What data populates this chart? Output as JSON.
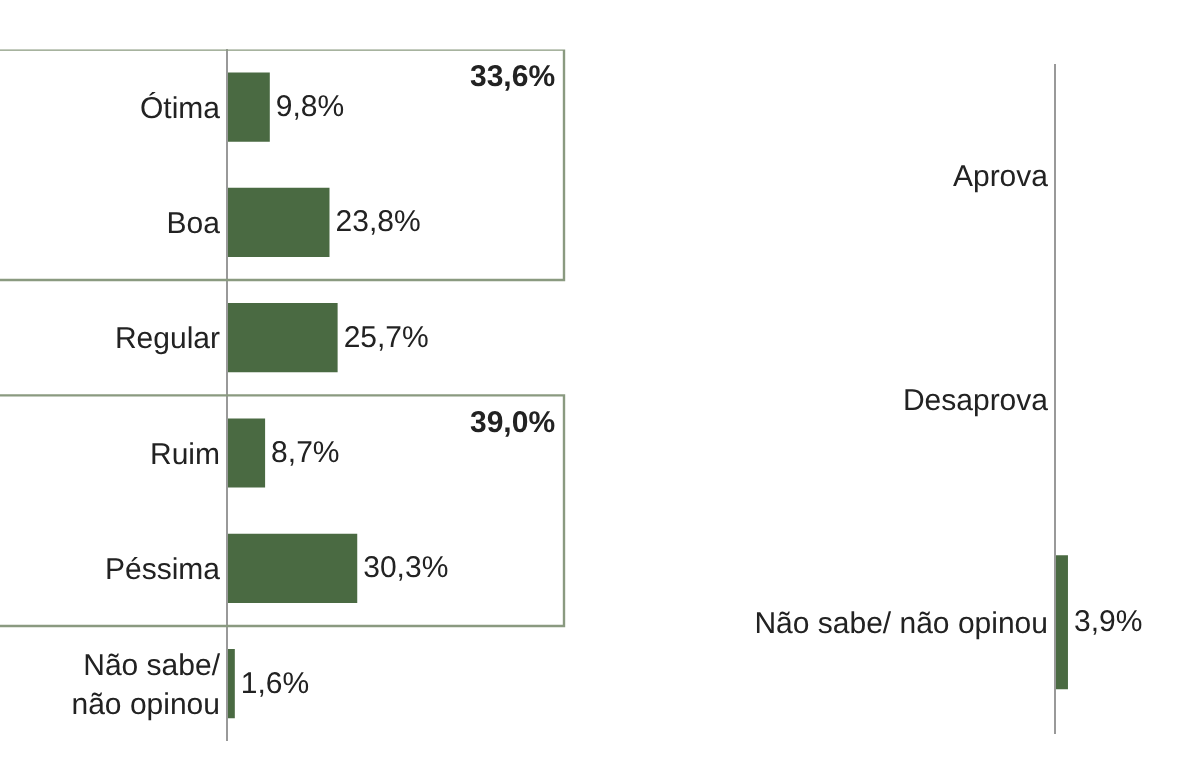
{
  "chart_data": [
    {
      "type": "bar",
      "orientation": "horizontal",
      "categories": [
        "Ótima",
        "Boa",
        "Regular",
        "Ruim",
        "Péssima",
        "Não sabe/ não opinou"
      ],
      "values": [
        9.8,
        23.8,
        25.7,
        8.7,
        30.3,
        1.6
      ],
      "value_labels": [
        "9,8%",
        "23,8%",
        "25,7%",
        "8,7%",
        "30,3%",
        "1,6%"
      ],
      "color": "#4a6a42",
      "annotations": [
        "33,6%",
        "39,0%"
      ]
    },
    {
      "type": "bar",
      "orientation": "horizontal",
      "categories": [
        "Aprova",
        "Desaprova",
        "Não sabe/ não opinou"
      ],
      "values": [
        null,
        null,
        3.9
      ],
      "value_labels": [
        null,
        null,
        "3,9%"
      ],
      "color": "#4a6a42"
    }
  ]
}
